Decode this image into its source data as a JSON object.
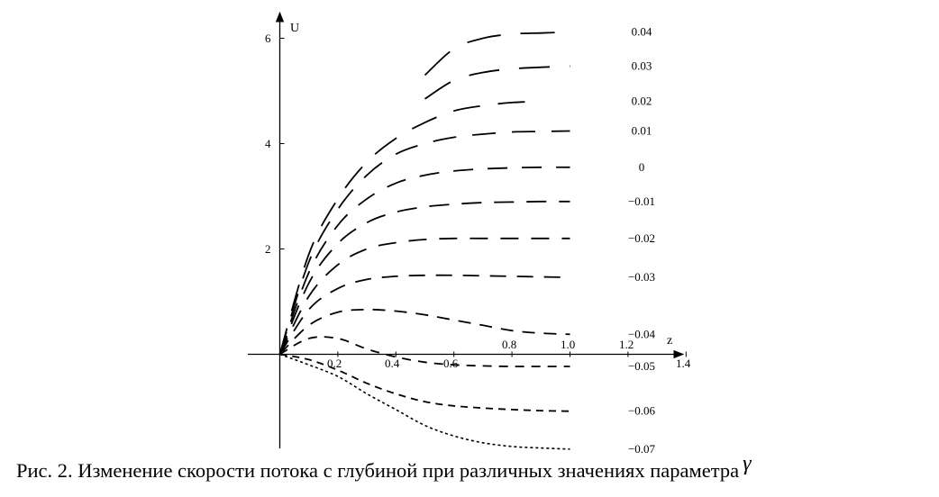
{
  "caption": {
    "text": "Рис. 2. Изменение скорости потока с глубиной при различных значениях параметра",
    "symbol": "γ"
  },
  "chart_data": {
    "type": "line",
    "title": "",
    "xlabel": "z",
    "ylabel": "U",
    "xlim": [
      0,
      1.4
    ],
    "ylim": [
      -1.75,
      6.5
    ],
    "x_ticks_top": [
      "0.8",
      "1.0",
      "1.2"
    ],
    "x_ticks_bottom": [
      "0.2",
      "0.4",
      "0.6",
      "1.4"
    ],
    "y_ticks": [
      "2",
      "4",
      "6"
    ],
    "legend": "inline-right",
    "grid": false,
    "series": [
      {
        "name": "0.04",
        "x": [
          0.5,
          0.6,
          0.7,
          0.8,
          0.9,
          1.0
        ],
        "y": [
          5.3,
          5.8,
          6.0,
          6.08,
          6.1,
          6.12
        ]
      },
      {
        "name": "0.03",
        "x": [
          0.5,
          0.6,
          0.7,
          0.8,
          0.9,
          1.0
        ],
        "y": [
          4.85,
          5.2,
          5.35,
          5.42,
          5.45,
          5.47
        ]
      },
      {
        "name": "0.02",
        "x": [
          0.0,
          0.1,
          0.2,
          0.3,
          0.4,
          0.5,
          0.6,
          0.7,
          0.8,
          0.9
        ],
        "y": [
          0,
          1.9,
          2.95,
          3.65,
          4.1,
          4.4,
          4.62,
          4.72,
          4.78,
          4.8
        ]
      },
      {
        "name": "0.01",
        "x": [
          0.0,
          0.1,
          0.2,
          0.3,
          0.4,
          0.5,
          0.6,
          0.7,
          0.8,
          0.9,
          1.0
        ],
        "y": [
          0,
          1.75,
          2.75,
          3.4,
          3.8,
          4.0,
          4.12,
          4.18,
          4.22,
          4.23,
          4.24
        ]
      },
      {
        "name": "0",
        "x": [
          0.0,
          0.1,
          0.2,
          0.3,
          0.4,
          0.5,
          0.6,
          0.7,
          0.8,
          0.9,
          1.0
        ],
        "y": [
          0,
          1.55,
          2.45,
          2.95,
          3.25,
          3.4,
          3.48,
          3.52,
          3.54,
          3.55,
          3.55
        ]
      },
      {
        "name": "−0.01",
        "x": [
          0.0,
          0.1,
          0.2,
          0.3,
          0.4,
          0.5,
          0.6,
          0.7,
          0.8,
          0.9,
          1.0
        ],
        "y": [
          0,
          1.35,
          2.1,
          2.5,
          2.7,
          2.8,
          2.85,
          2.88,
          2.89,
          2.9,
          2.9
        ]
      },
      {
        "name": "−0.02",
        "x": [
          0.0,
          0.1,
          0.2,
          0.3,
          0.4,
          0.5,
          0.6,
          0.7,
          0.8,
          0.9,
          1.0
        ],
        "y": [
          0,
          1.1,
          1.7,
          2.0,
          2.12,
          2.18,
          2.2,
          2.2,
          2.2,
          2.2,
          2.2
        ]
      },
      {
        "name": "−0.03",
        "x": [
          0.0,
          0.1,
          0.2,
          0.3,
          0.4,
          0.5,
          0.6,
          0.7,
          0.8,
          0.9,
          1.0
        ],
        "y": [
          0,
          0.85,
          1.25,
          1.42,
          1.48,
          1.5,
          1.5,
          1.49,
          1.48,
          1.47,
          1.46
        ]
      },
      {
        "name": "−0.04",
        "x": [
          0.0,
          0.1,
          0.2,
          0.3,
          0.4,
          0.5,
          0.6,
          0.7,
          0.8,
          0.9,
          1.0
        ],
        "y": [
          0,
          0.55,
          0.8,
          0.85,
          0.82,
          0.75,
          0.65,
          0.55,
          0.45,
          0.4,
          0.38
        ]
      },
      {
        "name": "−0.05",
        "x": [
          0.0,
          0.1,
          0.2,
          0.3,
          0.4,
          0.5,
          0.6,
          0.7,
          0.8,
          0.9,
          1.0
        ],
        "y": [
          0,
          0.3,
          0.3,
          0.1,
          -0.05,
          -0.15,
          -0.2,
          -0.22,
          -0.23,
          -0.23,
          -0.23
        ]
      },
      {
        "name": "−0.06",
        "x": [
          0.0,
          0.1,
          0.2,
          0.3,
          0.4,
          0.5,
          0.6,
          0.7,
          0.8,
          0.9,
          1.0
        ],
        "y": [
          0,
          -0.1,
          -0.3,
          -0.55,
          -0.75,
          -0.9,
          -0.98,
          -1.02,
          -1.05,
          -1.07,
          -1.08
        ]
      },
      {
        "name": "−0.07",
        "x": [
          0.0,
          0.1,
          0.2,
          0.3,
          0.4,
          0.5,
          0.6,
          0.7,
          0.8,
          0.9,
          1.0
        ],
        "y": [
          0,
          -0.2,
          -0.42,
          -0.75,
          -1.05,
          -1.35,
          -1.55,
          -1.68,
          -1.75,
          -1.78,
          -1.8
        ]
      }
    ]
  }
}
